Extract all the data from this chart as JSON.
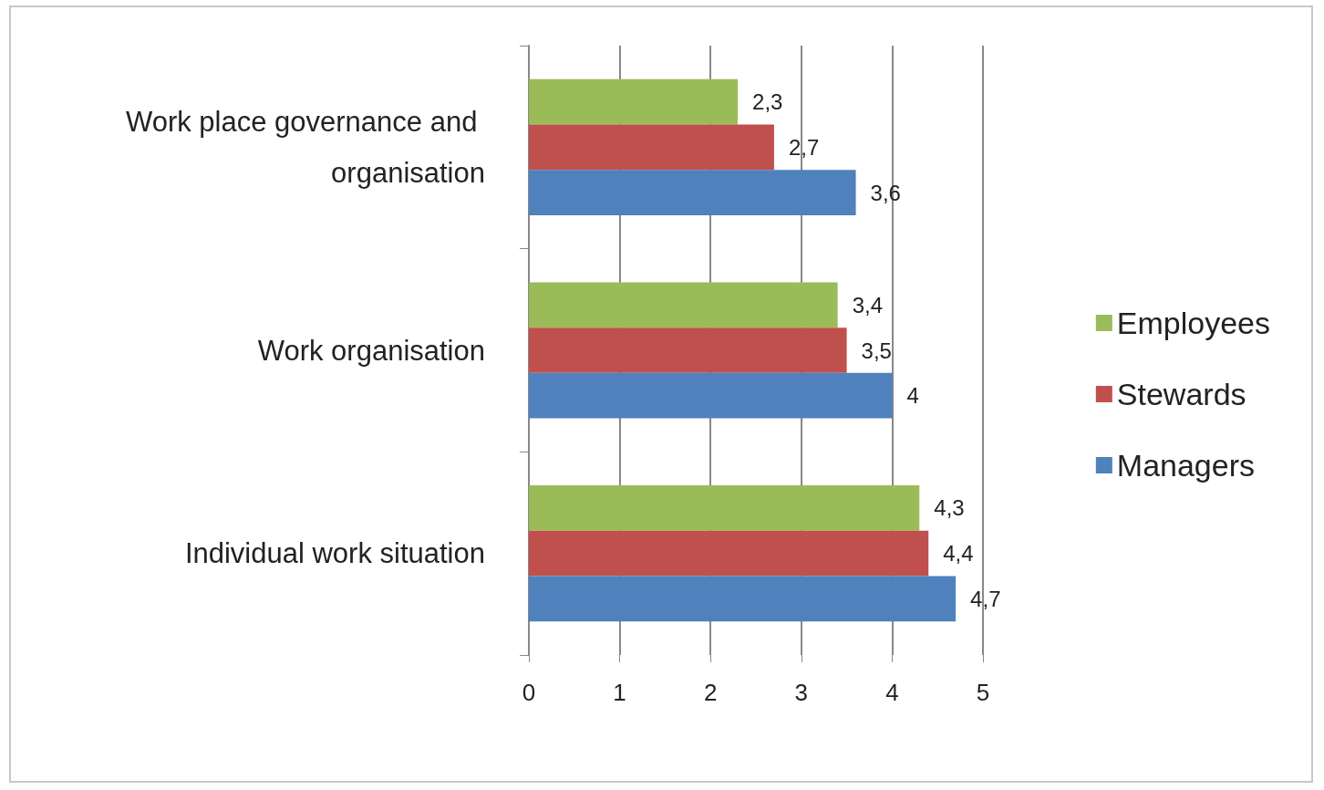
{
  "chart_data": {
    "type": "bar",
    "orientation": "horizontal",
    "categories": [
      "Work place governance and organisation",
      "Work organisation",
      "Individual work situation"
    ],
    "series": [
      {
        "name": "Employees",
        "color": "#9bbb59",
        "values": [
          2.3,
          3.4,
          4.3
        ],
        "value_labels": [
          "2,3",
          "3,4",
          "4,3"
        ]
      },
      {
        "name": "Stewards",
        "color": "#c0504d",
        "values": [
          2.7,
          3.5,
          4.4
        ],
        "value_labels": [
          "2,7",
          "3,5",
          "4,4"
        ]
      },
      {
        "name": "Managers",
        "color": "#4f81bd",
        "values": [
          3.6,
          4,
          4.7
        ],
        "value_labels": [
          "3,6",
          "4",
          "4,7"
        ]
      }
    ],
    "xlim": [
      0,
      5
    ],
    "xticks": [
      0,
      1,
      2,
      3,
      4,
      5
    ],
    "grid": "x",
    "legend": "right"
  }
}
